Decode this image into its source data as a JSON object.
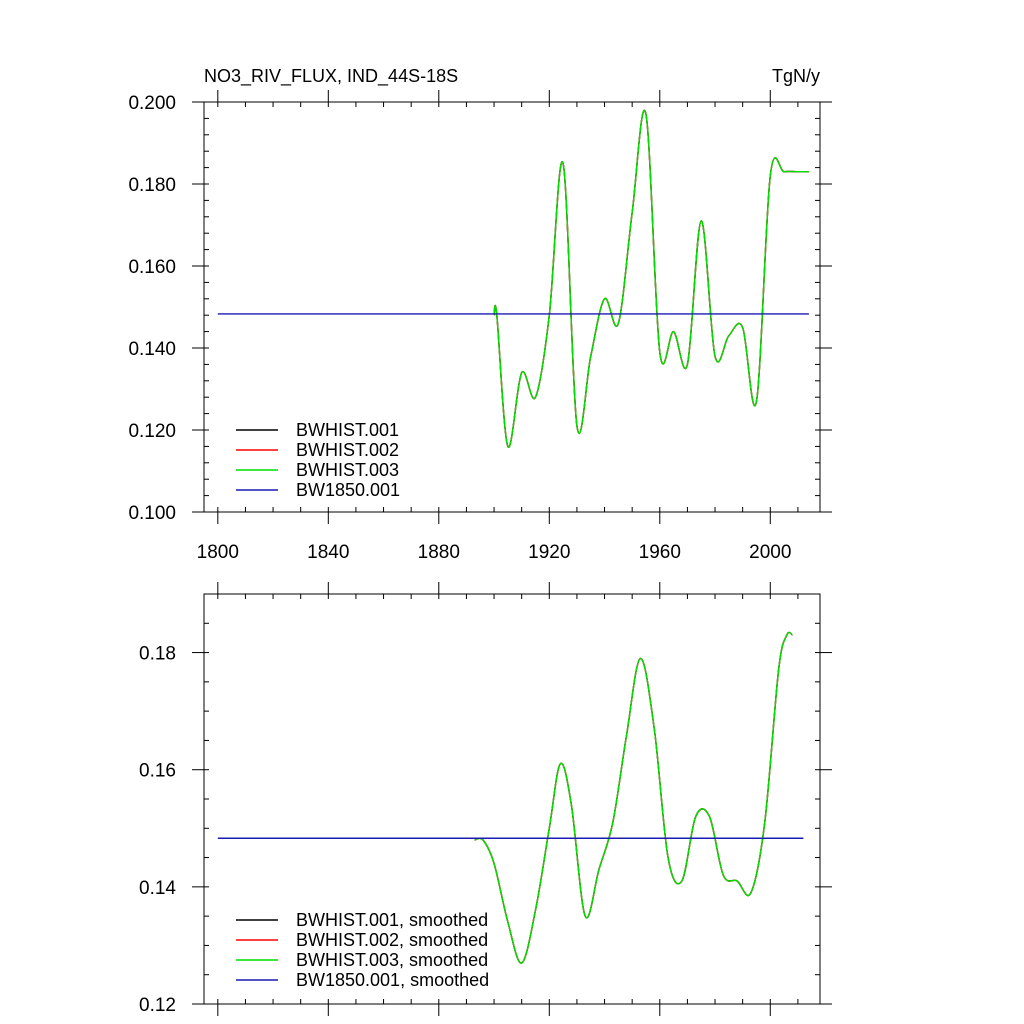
{
  "chart_data": [
    {
      "type": "line",
      "title": "NO3_RIV_FLUX, IND_44S-18S",
      "units": "TgN/y",
      "xlim": [
        1795,
        2018
      ],
      "ylim": [
        0.1,
        0.2
      ],
      "xticks": [
        1800,
        1840,
        1880,
        1920,
        1960,
        2000
      ],
      "xtick_labels": [
        "1800",
        "1840",
        "1880",
        "1920",
        "1960",
        "2000"
      ],
      "yticks": [
        0.1,
        0.12,
        0.14,
        0.16,
        0.18,
        0.2
      ],
      "ytick_labels": [
        "0.100",
        "0.120",
        "0.140",
        "0.160",
        "0.180",
        "0.200"
      ],
      "legend_position": "bottom-left",
      "series": [
        {
          "name": "BWHIST.001",
          "color": "#000000",
          "x": [
            1900,
            1901,
            1905,
            1910,
            1915,
            1920,
            1925,
            1930,
            1935,
            1940,
            1945,
            1950,
            1955,
            1960,
            1965,
            1970,
            1975,
            1980,
            1985,
            1990,
            1995,
            2000,
            2005,
            2010,
            2014
          ],
          "values": [
            0.148,
            0.148,
            0.116,
            0.134,
            0.128,
            0.148,
            0.185,
            0.121,
            0.138,
            0.152,
            0.146,
            0.173,
            0.197,
            0.139,
            0.144,
            0.136,
            0.171,
            0.138,
            0.143,
            0.145,
            0.127,
            0.182,
            0.183,
            0.183,
            0.183
          ]
        },
        {
          "name": "BWHIST.002",
          "color": "#ff0000",
          "x": [
            1900,
            1901,
            1905,
            1910,
            1915,
            1920,
            1925,
            1930,
            1935,
            1940,
            1945,
            1950,
            1955,
            1960,
            1965,
            1970,
            1975,
            1980,
            1985,
            1990,
            1995,
            2000,
            2005,
            2010,
            2014
          ],
          "values": [
            0.148,
            0.148,
            0.116,
            0.134,
            0.128,
            0.148,
            0.185,
            0.121,
            0.138,
            0.152,
            0.146,
            0.173,
            0.197,
            0.139,
            0.144,
            0.136,
            0.171,
            0.138,
            0.143,
            0.145,
            0.127,
            0.182,
            0.183,
            0.183,
            0.183
          ]
        },
        {
          "name": "BWHIST.003",
          "color": "#00dd00",
          "x": [
            1900,
            1901,
            1905,
            1910,
            1915,
            1920,
            1925,
            1930,
            1935,
            1940,
            1945,
            1950,
            1955,
            1960,
            1965,
            1970,
            1975,
            1980,
            1985,
            1990,
            1995,
            2000,
            2005,
            2010,
            2014
          ],
          "values": [
            0.148,
            0.148,
            0.116,
            0.134,
            0.128,
            0.148,
            0.185,
            0.121,
            0.138,
            0.152,
            0.146,
            0.173,
            0.197,
            0.139,
            0.144,
            0.136,
            0.171,
            0.138,
            0.143,
            0.145,
            0.127,
            0.182,
            0.183,
            0.183,
            0.183
          ]
        },
        {
          "name": "BW1850.001",
          "color": "#1a1ab4",
          "x": [
            1800,
            2014
          ],
          "values": [
            0.1483,
            0.1483
          ]
        }
      ]
    },
    {
      "type": "line",
      "title": "",
      "xlim": [
        1795,
        2018
      ],
      "ylim": [
        0.12,
        0.19
      ],
      "xticks": [
        1800,
        1840,
        1880,
        1920,
        1960,
        2000
      ],
      "yticks": [
        0.12,
        0.14,
        0.16,
        0.18
      ],
      "ytick_labels": [
        "0.12",
        "0.14",
        "0.16",
        "0.18"
      ],
      "legend_position": "bottom-left",
      "series": [
        {
          "name": "BWHIST.001, smoothed",
          "color": "#000000",
          "x": [
            1893,
            1896,
            1900,
            1905,
            1910,
            1915,
            1920,
            1924,
            1928,
            1933,
            1938,
            1943,
            1948,
            1953,
            1958,
            1963,
            1968,
            1973,
            1978,
            1983,
            1988,
            1993,
            1998,
            2003,
            2006,
            2008
          ],
          "values": [
            0.148,
            0.148,
            0.144,
            0.134,
            0.127,
            0.136,
            0.15,
            0.161,
            0.154,
            0.135,
            0.143,
            0.151,
            0.166,
            0.179,
            0.167,
            0.145,
            0.141,
            0.152,
            0.152,
            0.142,
            0.141,
            0.139,
            0.151,
            0.177,
            0.183,
            0.183
          ]
        },
        {
          "name": "BWHIST.002, smoothed",
          "color": "#ff0000",
          "x": [
            1893,
            1896,
            1900,
            1905,
            1910,
            1915,
            1920,
            1924,
            1928,
            1933,
            1938,
            1943,
            1948,
            1953,
            1958,
            1963,
            1968,
            1973,
            1978,
            1983,
            1988,
            1993,
            1998,
            2003,
            2006,
            2008
          ],
          "values": [
            0.148,
            0.148,
            0.144,
            0.134,
            0.127,
            0.136,
            0.15,
            0.161,
            0.154,
            0.135,
            0.143,
            0.151,
            0.166,
            0.179,
            0.167,
            0.145,
            0.141,
            0.152,
            0.152,
            0.142,
            0.141,
            0.139,
            0.151,
            0.177,
            0.183,
            0.183
          ]
        },
        {
          "name": "BWHIST.003, smoothed",
          "color": "#00dd00",
          "x": [
            1893,
            1896,
            1900,
            1905,
            1910,
            1915,
            1920,
            1924,
            1928,
            1933,
            1938,
            1943,
            1948,
            1953,
            1958,
            1963,
            1968,
            1973,
            1978,
            1983,
            1988,
            1993,
            1998,
            2003,
            2006,
            2008
          ],
          "values": [
            0.148,
            0.148,
            0.144,
            0.134,
            0.127,
            0.136,
            0.15,
            0.161,
            0.154,
            0.135,
            0.143,
            0.151,
            0.166,
            0.179,
            0.167,
            0.145,
            0.141,
            0.152,
            0.152,
            0.142,
            0.141,
            0.139,
            0.151,
            0.177,
            0.183,
            0.183
          ]
        },
        {
          "name": "BW1850.001, smoothed",
          "color": "#1a1ab4",
          "x": [
            1800,
            2012
          ],
          "values": [
            0.1483,
            0.1483
          ]
        }
      ]
    }
  ]
}
